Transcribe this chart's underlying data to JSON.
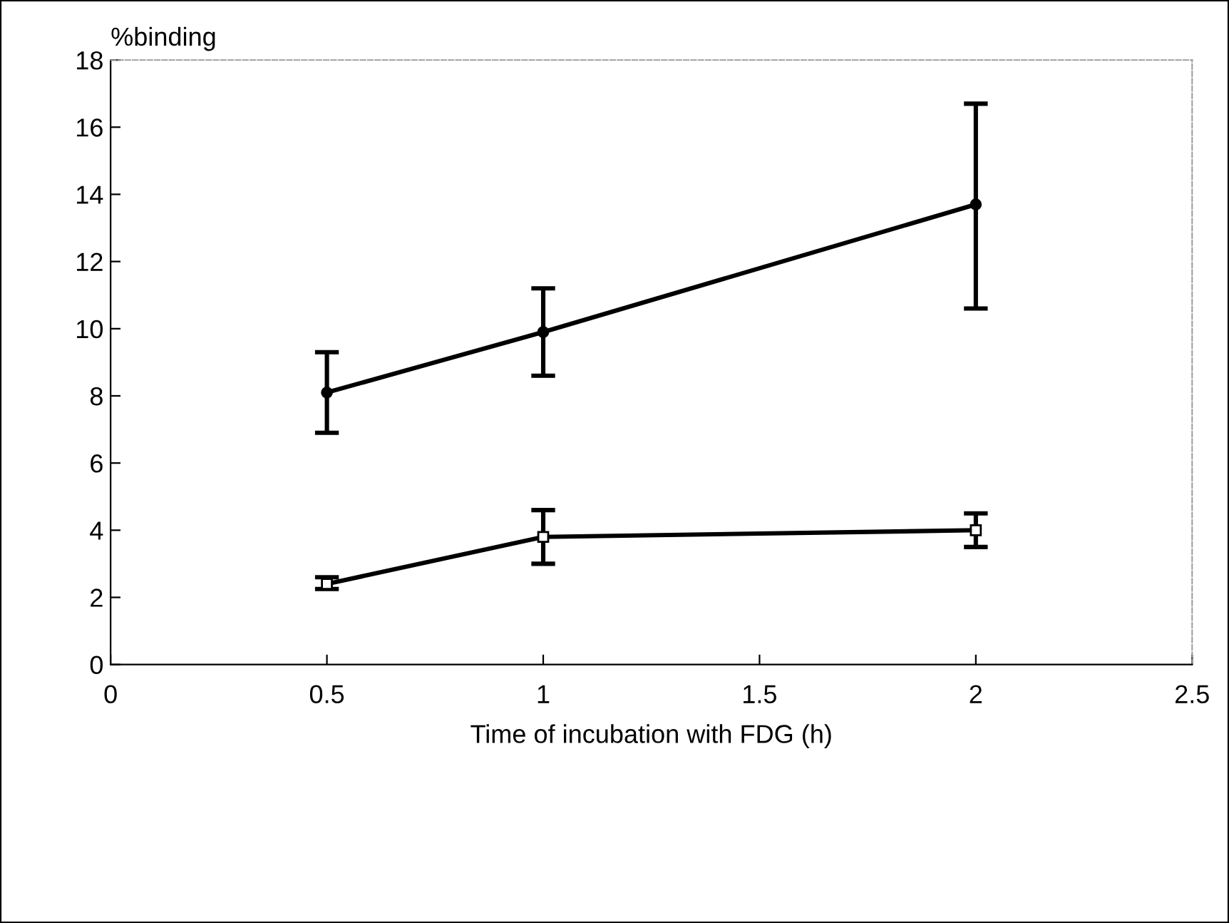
{
  "chart_data": {
    "type": "line",
    "xlabel": "Time of incubation with FDG (h)",
    "ylabel": "%binding",
    "x": [
      0.5,
      1,
      2
    ],
    "series": [
      {
        "color": "#000000",
        "marker": "circle",
        "values": [
          8.1,
          9.9,
          13.7
        ],
        "errors": [
          [
            6.9,
            9.3
          ],
          [
            8.6,
            11.2
          ],
          [
            10.6,
            16.7
          ]
        ]
      },
      {
        "color": "#000000",
        "marker": "square",
        "values": [
          2.4,
          3.8,
          4.0
        ],
        "errors": [
          [
            2.25,
            2.6
          ],
          [
            3.0,
            4.6
          ],
          [
            3.5,
            4.5
          ]
        ]
      }
    ],
    "xlim": [
      0,
      2.5
    ],
    "xticks": [
      0,
      0.5,
      1,
      1.5,
      2,
      2.5
    ],
    "ylim": [
      0,
      18
    ],
    "yticks": [
      0,
      2,
      4,
      6,
      8,
      10,
      12,
      14,
      16,
      18
    ],
    "grid": false,
    "legend": false
  }
}
